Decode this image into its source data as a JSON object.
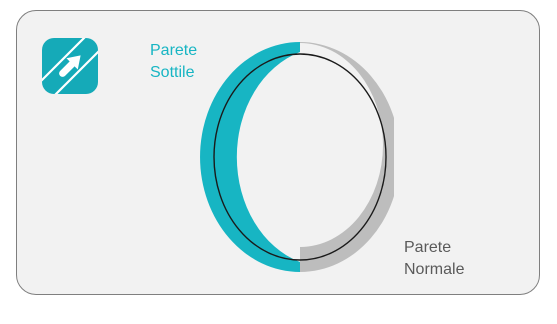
{
  "colors": {
    "thin_wall": "#17b5c3",
    "normal_wall": "#bdbdbd",
    "card_background": "#f2f2f2",
    "card_border": "#7f7f7f",
    "icon_background": "#15aab8"
  },
  "icon": {
    "name": "thin-wall-arrow-icon"
  },
  "labels": {
    "thin_wall": [
      "Parete",
      "Sottile"
    ],
    "normal_wall": [
      "Parete",
      "Normale"
    ]
  },
  "ring": {
    "segments": [
      {
        "key": "thin_wall",
        "side": "left"
      },
      {
        "key": "normal_wall",
        "side": "right"
      }
    ]
  }
}
